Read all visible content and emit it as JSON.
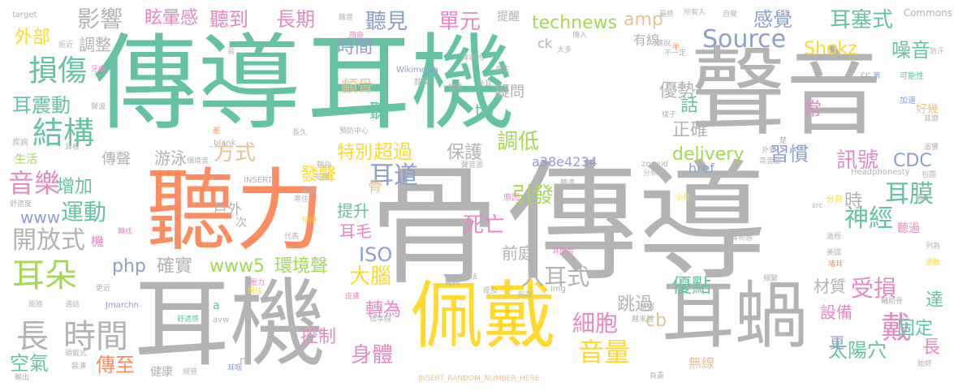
{
  "palette": {
    "green": "#66c2a5",
    "orange": "#fc8d62",
    "blue": "#8da0cb",
    "pink": "#e78ac3",
    "lime": "#a6d854",
    "yellow": "#ffd92f",
    "tan": "#e5c494",
    "gray": "#b3b3b3"
  },
  "words": [
    "傳導",
    "耳機",
    "聲音",
    "聽力",
    "骨",
    "傳導",
    "耳機",
    "佩戴",
    "耳蝸",
    "長",
    "時間",
    "結構",
    "損傷",
    "音樂",
    "耳朵",
    "耳震動",
    "Source",
    "耳塞式",
    "噪音",
    "聽見",
    "單元",
    "technews",
    "amp",
    "感覺",
    "Shokz",
    "影響",
    "眩暈感",
    "聽到",
    "長期",
    "調整",
    "外部",
    "方式",
    "特別",
    "超過",
    "耳道",
    "保護",
    "調低",
    "傳聲",
    "游泳",
    "delivery",
    "a38e4234",
    "訊號",
    "CDC",
    "習慣",
    "神經",
    "耳膜",
    "開放式",
    "運動",
    "增加",
    "引發",
    "死亡",
    "大腦",
    "入耳式",
    "受損",
    "戴",
    "固定",
    "細胞",
    "音量",
    "太陽穴",
    "php",
    "確實",
    "www5",
    "環境聲",
    "ISO",
    "前庭",
    "優點",
    "轉為",
    "控制",
    "身體",
    "傳至",
    "空氣",
    "健康",
    "設備",
    "材質",
    "www",
    "戶外",
    "提升",
    "耳毛",
    "發聲",
    "正確",
    "優勢",
    "時間",
    "顱骨",
    "疑問",
    "話",
    "常",
    "tw",
    "cb",
    "更",
    "達",
    "跳過",
    "href",
    "無線",
    "時",
    "長",
    "聽",
    "骨",
    "機",
    "次",
    "n",
    "a",
    "Wikimedia",
    "ck",
    "提醒",
    "有線",
    "CC 第",
    "可能性",
    "加速",
    "Commons",
    "target",
    "_blank",
    "INSERT",
    "INSERT_RANDOM_NUMBER_HERE",
    "Headphonesty",
    "Jmarchn",
    "avw",
    "img",
    "src",
    "zoneid",
    "分析",
    "外界",
    "高音量",
    "聲音源",
    "聽清",
    "原因",
    "小骨",
    "分貝",
    "過程",
    "異物感",
    "美國",
    "堵耳",
    "頻繁",
    "戴法",
    "雜訊",
    "形狀",
    "傳播",
    "越來越",
    "負責",
    "輔助骨",
    "過敏",
    "列為",
    "始終",
    "輸出",
    "裝潢",
    "通話",
    "風險",
    "更近",
    "舒適度",
    "疾病",
    "生活",
    "耳根",
    "聲波",
    "牙齒",
    "拒近",
    "易",
    "傳入",
    "再生",
    "標準",
    "鼓膜",
    "外耳",
    "最終",
    "所有人",
    "自覺",
    "雜音",
    "宿命",
    "太多",
    "下工夫",
    "不一定",
    "聽說",
    "半",
    "傳導式",
    "好幾",
    "防汗",
    "預防中心",
    "長久",
    "環境音",
    "差",
    "朝向",
    "局限",
    "寒住",
    "弱點",
    "採用",
    "代表",
    "轉成",
    "壓力",
    "擋住",
    "皮膚",
    "提及",
    "規管",
    "耳咽",
    "標準線",
    "舒適感",
    "頭戴式",
    "耳機音",
    "楚",
    "樣子",
    "包圍",
    "耳廓",
    "過多",
    "過響",
    "聽過"
  ]
}
